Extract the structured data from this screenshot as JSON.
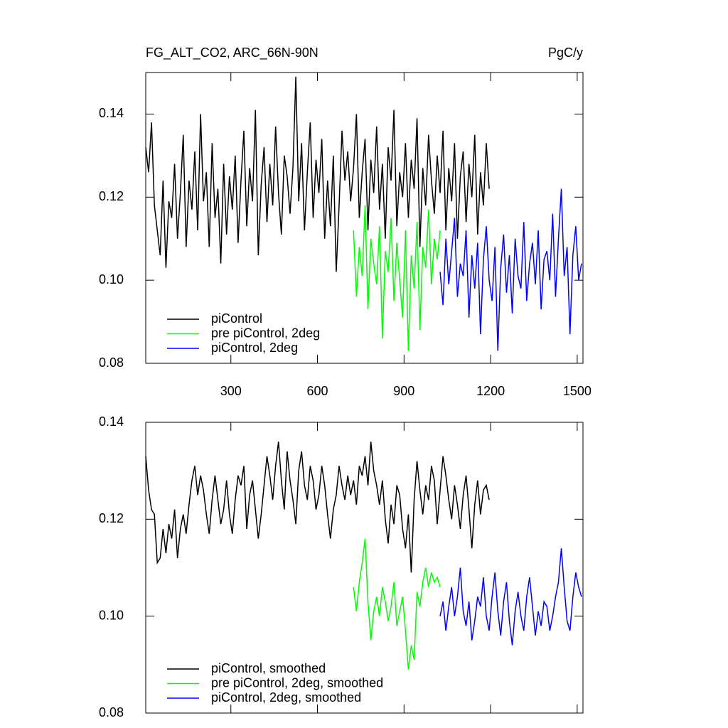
{
  "chart_data": [
    {
      "type": "line",
      "title": "FG_ALT_CO2, ARC_66N-90N",
      "units": "PgC/y",
      "xlim": [
        5,
        1520
      ],
      "xticks": [
        300,
        600,
        900,
        1200,
        1500
      ],
      "ylim": [
        0.08,
        0.15
      ],
      "yticks": [
        0.08,
        {
          "value": 0.1,
          "label": "0.10"
        },
        0.12,
        0.14
      ],
      "legend": "lower left",
      "series": [
        {
          "name": "piControl",
          "color": "#000000",
          "x": [
            5,
            15,
            25,
            35,
            45,
            55,
            65,
            75,
            85,
            95,
            105,
            115,
            125,
            135,
            145,
            155,
            165,
            175,
            185,
            195,
            205,
            215,
            225,
            235,
            245,
            255,
            265,
            275,
            285,
            295,
            305,
            315,
            325,
            335,
            345,
            355,
            365,
            375,
            385,
            395,
            405,
            415,
            425,
            435,
            445,
            455,
            465,
            475,
            485,
            495,
            505,
            515,
            525,
            535,
            545,
            555,
            565,
            575,
            585,
            595,
            605,
            615,
            625,
            635,
            645,
            655,
            665,
            675,
            685,
            695,
            705,
            715,
            725,
            735,
            745,
            755,
            765,
            775,
            785,
            795,
            805,
            815,
            825,
            835,
            845,
            855,
            865,
            875,
            885,
            895,
            905,
            915,
            925,
            935,
            945,
            955,
            965,
            975,
            985,
            995,
            1005,
            1015,
            1025,
            1035,
            1045,
            1055,
            1065,
            1075,
            1085,
            1095,
            1105,
            1115,
            1125,
            1135,
            1145,
            1155,
            1165,
            1175,
            1185,
            1195
          ],
          "values": [
            0.132,
            0.126,
            0.138,
            0.118,
            0.112,
            0.106,
            0.124,
            0.103,
            0.119,
            0.115,
            0.128,
            0.11,
            0.121,
            0.135,
            0.108,
            0.124,
            0.117,
            0.131,
            0.112,
            0.14,
            0.119,
            0.126,
            0.108,
            0.133,
            0.115,
            0.122,
            0.104,
            0.128,
            0.111,
            0.125,
            0.117,
            0.13,
            0.109,
            0.124,
            0.136,
            0.113,
            0.127,
            0.119,
            0.141,
            0.106,
            0.123,
            0.132,
            0.114,
            0.128,
            0.118,
            0.137,
            0.121,
            0.111,
            0.13,
            0.125,
            0.116,
            0.127,
            0.149,
            0.119,
            0.133,
            0.112,
            0.126,
            0.138,
            0.115,
            0.129,
            0.121,
            0.134,
            0.11,
            0.124,
            0.113,
            0.13,
            0.102,
            0.118,
            0.136,
            0.124,
            0.131,
            0.119,
            0.127,
            0.14,
            0.115,
            0.126,
            0.134,
            0.112,
            0.129,
            0.121,
            0.137,
            0.117,
            0.128,
            0.11,
            0.132,
            0.124,
            0.141,
            0.113,
            0.126,
            0.12,
            0.133,
            0.115,
            0.129,
            0.122,
            0.139,
            0.108,
            0.127,
            0.118,
            0.135,
            0.124,
            0.116,
            0.13,
            0.121,
            0.136,
            0.112,
            0.127,
            0.119,
            0.133,
            0.11,
            0.125,
            0.131,
            0.114,
            0.128,
            0.12,
            0.135,
            0.111,
            0.126,
            0.118,
            0.133,
            0.122
          ]
        },
        {
          "name": "pre piControl, 2deg",
          "color": "#00ff00",
          "x": [
            725,
            735,
            745,
            755,
            765,
            775,
            785,
            795,
            805,
            815,
            825,
            835,
            845,
            855,
            865,
            875,
            885,
            895,
            905,
            915,
            925,
            935,
            945,
            955,
            965,
            975,
            985,
            995,
            1005,
            1015,
            1025
          ],
          "values": [
            0.112,
            0.096,
            0.108,
            0.101,
            0.118,
            0.093,
            0.11,
            0.104,
            0.099,
            0.113,
            0.086,
            0.107,
            0.102,
            0.115,
            0.095,
            0.109,
            0.1,
            0.091,
            0.112,
            0.083,
            0.106,
            0.098,
            0.114,
            0.088,
            0.108,
            0.103,
            0.117,
            0.099,
            0.11,
            0.105,
            0.112
          ]
        },
        {
          "name": "piControl, 2deg",
          "color": "#0000ff",
          "x": [
            1025,
            1035,
            1045,
            1055,
            1065,
            1075,
            1085,
            1095,
            1105,
            1115,
            1125,
            1135,
            1145,
            1155,
            1165,
            1175,
            1185,
            1195,
            1205,
            1215,
            1225,
            1235,
            1245,
            1255,
            1265,
            1275,
            1285,
            1295,
            1305,
            1315,
            1325,
            1335,
            1345,
            1355,
            1365,
            1375,
            1385,
            1395,
            1405,
            1415,
            1425,
            1435,
            1445,
            1455,
            1465,
            1475,
            1485,
            1495,
            1505,
            1515
          ],
          "values": [
            0.102,
            0.094,
            0.11,
            0.099,
            0.107,
            0.115,
            0.096,
            0.104,
            0.101,
            0.112,
            0.091,
            0.106,
            0.098,
            0.109,
            0.087,
            0.105,
            0.113,
            0.1,
            0.095,
            0.108,
            0.083,
            0.103,
            0.111,
            0.097,
            0.106,
            0.092,
            0.11,
            0.101,
            0.098,
            0.114,
            0.095,
            0.104,
            0.109,
            0.099,
            0.112,
            0.093,
            0.105,
            0.107,
            0.1,
            0.116,
            0.096,
            0.11,
            0.122,
            0.101,
            0.108,
            0.087,
            0.106,
            0.113,
            0.1,
            0.104
          ]
        }
      ]
    },
    {
      "type": "line",
      "xlim": [
        5,
        1520
      ],
      "ylim": [
        0.08,
        0.14
      ],
      "yticks": [
        0.08,
        {
          "value": 0.1,
          "label": "0.10"
        },
        0.12,
        0.14
      ],
      "legend": "lower left",
      "series": [
        {
          "name": "piControl, smoothed",
          "color": "#000000",
          "x": [
            5,
            15,
            25,
            35,
            45,
            55,
            65,
            75,
            85,
            95,
            105,
            115,
            125,
            135,
            145,
            155,
            165,
            175,
            185,
            195,
            205,
            215,
            225,
            235,
            245,
            255,
            265,
            275,
            285,
            295,
            305,
            315,
            325,
            335,
            345,
            355,
            365,
            375,
            385,
            395,
            405,
            415,
            425,
            435,
            445,
            455,
            465,
            475,
            485,
            495,
            505,
            515,
            525,
            535,
            545,
            555,
            565,
            575,
            585,
            595,
            605,
            615,
            625,
            635,
            645,
            655,
            665,
            675,
            685,
            695,
            705,
            715,
            725,
            735,
            745,
            755,
            765,
            775,
            785,
            795,
            805,
            815,
            825,
            835,
            845,
            855,
            865,
            875,
            885,
            895,
            905,
            915,
            925,
            935,
            945,
            955,
            965,
            975,
            985,
            995,
            1005,
            1015,
            1025,
            1035,
            1045,
            1055,
            1065,
            1075,
            1085,
            1095,
            1105,
            1115,
            1125,
            1135,
            1145,
            1155,
            1165,
            1175,
            1185,
            1195
          ],
          "values": [
            0.133,
            0.126,
            0.122,
            0.121,
            0.111,
            0.112,
            0.118,
            0.113,
            0.119,
            0.116,
            0.122,
            0.112,
            0.118,
            0.121,
            0.117,
            0.123,
            0.128,
            0.131,
            0.125,
            0.129,
            0.126,
            0.121,
            0.117,
            0.124,
            0.129,
            0.124,
            0.119,
            0.122,
            0.128,
            0.121,
            0.117,
            0.124,
            0.129,
            0.127,
            0.131,
            0.118,
            0.125,
            0.128,
            0.122,
            0.116,
            0.121,
            0.127,
            0.133,
            0.129,
            0.124,
            0.131,
            0.136,
            0.128,
            0.122,
            0.134,
            0.128,
            0.124,
            0.119,
            0.13,
            0.134,
            0.127,
            0.124,
            0.131,
            0.128,
            0.122,
            0.125,
            0.131,
            0.127,
            0.121,
            0.116,
            0.122,
            0.125,
            0.131,
            0.127,
            0.124,
            0.129,
            0.125,
            0.128,
            0.123,
            0.131,
            0.129,
            0.133,
            0.127,
            0.136,
            0.13,
            0.127,
            0.123,
            0.128,
            0.12,
            0.115,
            0.123,
            0.119,
            0.127,
            0.125,
            0.118,
            0.114,
            0.121,
            0.109,
            0.124,
            0.132,
            0.126,
            0.121,
            0.127,
            0.124,
            0.131,
            0.128,
            0.119,
            0.126,
            0.133,
            0.129,
            0.124,
            0.12,
            0.127,
            0.123,
            0.118,
            0.125,
            0.129,
            0.122,
            0.114,
            0.123,
            0.128,
            0.121,
            0.126,
            0.127,
            0.124
          ]
        },
        {
          "name": "pre piControl, 2deg, smoothed",
          "color": "#00ff00",
          "x": [
            725,
            735,
            745,
            755,
            765,
            775,
            785,
            795,
            805,
            815,
            825,
            835,
            845,
            855,
            865,
            875,
            885,
            895,
            905,
            915,
            925,
            935,
            945,
            955,
            965,
            975,
            985,
            995,
            1005,
            1015,
            1025
          ],
          "values": [
            0.106,
            0.101,
            0.107,
            0.111,
            0.116,
            0.103,
            0.095,
            0.101,
            0.104,
            0.1,
            0.106,
            0.103,
            0.099,
            0.102,
            0.107,
            0.098,
            0.101,
            0.104,
            0.097,
            0.089,
            0.094,
            0.091,
            0.105,
            0.102,
            0.107,
            0.11,
            0.106,
            0.109,
            0.107,
            0.108,
            0.106
          ]
        },
        {
          "name": "piControl, 2deg, smoothed",
          "color": "#0000ff",
          "x": [
            1025,
            1035,
            1045,
            1055,
            1065,
            1075,
            1085,
            1095,
            1105,
            1115,
            1125,
            1135,
            1145,
            1155,
            1165,
            1175,
            1185,
            1195,
            1205,
            1215,
            1225,
            1235,
            1245,
            1255,
            1265,
            1275,
            1285,
            1295,
            1305,
            1315,
            1325,
            1335,
            1345,
            1355,
            1365,
            1375,
            1385,
            1395,
            1405,
            1415,
            1425,
            1435,
            1445,
            1455,
            1465,
            1475,
            1485,
            1495,
            1505,
            1515
          ],
          "values": [
            0.1,
            0.103,
            0.097,
            0.102,
            0.106,
            0.1,
            0.104,
            0.11,
            0.101,
            0.098,
            0.103,
            0.095,
            0.099,
            0.104,
            0.102,
            0.108,
            0.1,
            0.097,
            0.104,
            0.109,
            0.101,
            0.096,
            0.103,
            0.107,
            0.099,
            0.094,
            0.101,
            0.105,
            0.1,
            0.097,
            0.104,
            0.108,
            0.102,
            0.096,
            0.101,
            0.098,
            0.103,
            0.102,
            0.097,
            0.1,
            0.104,
            0.107,
            0.114,
            0.106,
            0.099,
            0.097,
            0.104,
            0.109,
            0.106,
            0.104
          ]
        }
      ]
    }
  ]
}
